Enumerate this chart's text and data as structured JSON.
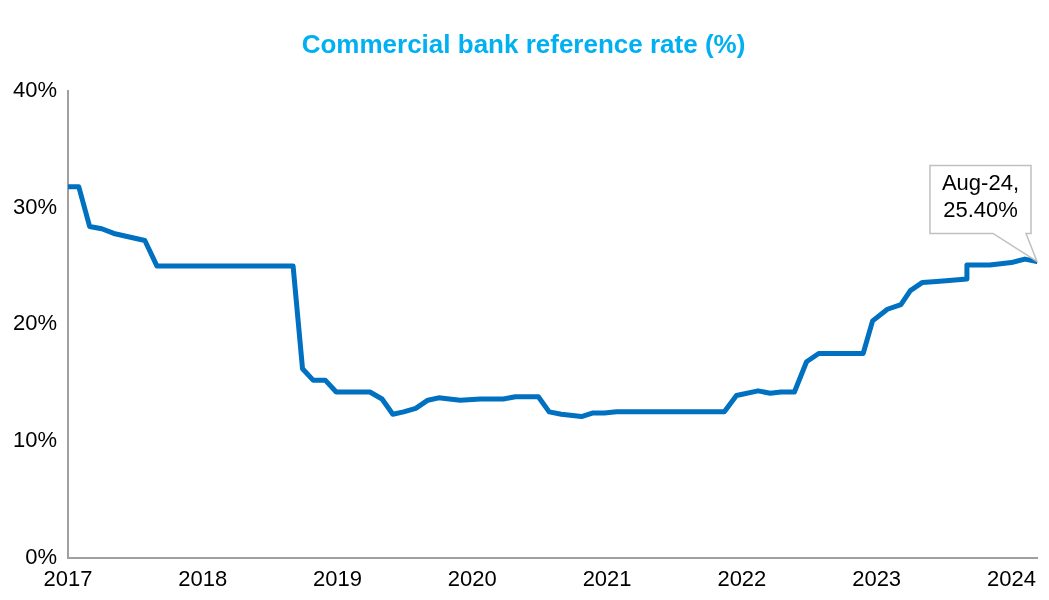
{
  "chart_data": {
    "type": "line",
    "title": "Commercial bank reference rate (%)",
    "x": [
      2017.0,
      2017.08,
      2017.16,
      2017.25,
      2017.34,
      2017.57,
      2017.66,
      2018.67,
      2018.74,
      2018.82,
      2018.91,
      2018.99,
      2019.24,
      2019.33,
      2019.41,
      2019.49,
      2019.58,
      2019.67,
      2019.75,
      2019.91,
      2020.06,
      2020.23,
      2020.32,
      2020.49,
      2020.57,
      2020.66,
      2020.81,
      2020.89,
      2020.98,
      2021.07,
      2021.87,
      2021.96,
      2022.12,
      2022.21,
      2022.29,
      2022.39,
      2022.48,
      2022.57,
      2022.9,
      2022.97,
      2023.08,
      2023.18,
      2023.25,
      2023.34,
      2023.47,
      2023.67,
      2023.67,
      2023.84,
      2024.0,
      2024.1,
      2024.19
    ],
    "series": [
      {
        "color": "#0070c0",
        "values": [
          31.8,
          31.8,
          28.4,
          28.2,
          27.8,
          27.2,
          25.0,
          25.0,
          16.2,
          15.2,
          15.2,
          14.2,
          14.2,
          13.6,
          12.3,
          12.5,
          12.8,
          13.5,
          13.7,
          13.5,
          13.6,
          13.6,
          13.8,
          13.8,
          12.5,
          12.3,
          12.1,
          12.4,
          12.4,
          12.5,
          12.5,
          13.9,
          14.3,
          14.1,
          14.2,
          14.2,
          16.8,
          17.5,
          17.5,
          20.3,
          21.3,
          21.7,
          22.9,
          23.6,
          23.7,
          23.9,
          25.1,
          25.1,
          25.3,
          25.6,
          25.4
        ]
      }
    ],
    "xlim": [
      2017,
      2024.19
    ],
    "xticks": [
      2017,
      2018,
      2019,
      2020,
      2021,
      2022,
      2023,
      2024
    ],
    "ylim": [
      0,
      40
    ],
    "yticks": [
      {
        "value": 0,
        "label": "0%"
      },
      {
        "value": 10,
        "label": "10%"
      },
      {
        "value": 20,
        "label": "20%"
      },
      {
        "value": 30,
        "label": "30%"
      },
      {
        "value": 40,
        "label": "40%"
      }
    ],
    "grid": false,
    "legend": false,
    "marker": "none",
    "line_style": "solid",
    "annotations": [
      {
        "text": "Aug-24,\n25.40%",
        "x": 2024.19,
        "y": 25.4
      }
    ]
  }
}
